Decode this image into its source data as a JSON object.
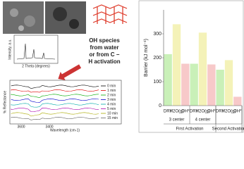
{
  "note": {
    "lines": [
      "OH species",
      "from water",
      "or from C −",
      "H activation"
    ]
  },
  "xrd": {
    "ylabel": "Intensity, a.u.",
    "xlabel": "2 Theta (degrees)"
  },
  "spectra": {
    "ylabel": "% Reflectance",
    "xlabel": "Wavelength (cm-1)",
    "xticks": [
      "3600",
      "3400"
    ],
    "legend": [
      "0 min",
      "1 min",
      "2 min",
      "3 min",
      "4 min",
      "5 min",
      "10 min",
      "15 min"
    ]
  },
  "chart_data": {
    "type": "bar",
    "ylabel": "Barrier (kJ mol⁻¹)",
    "ylim": [
      0,
      400
    ],
    "yticks": [
      0,
      100,
      200,
      300
    ],
    "colors": [
      "#c9f0b8",
      "#f4f2b8",
      "#f7c9c9"
    ],
    "groups": [
      {
        "name": "First Activation",
        "subgroups": [
          {
            "name": "3 center",
            "categories": [
              "DRY",
              "H2O(g)",
              "OH*"
            ],
            "values": [
              215,
              340,
              175
            ]
          },
          {
            "name": "4 center",
            "categories": [
              "DRY",
              "H2O(g)",
              "OH*"
            ],
            "values": [
              175,
              305,
              172
            ]
          }
        ]
      },
      {
        "name": "Second Activation",
        "subgroups": [
          {
            "name": null,
            "categories": [
              "DRY",
              "H2O(g)",
              "OH*"
            ],
            "values": [
              150,
              190,
              37
            ]
          }
        ]
      }
    ]
  }
}
